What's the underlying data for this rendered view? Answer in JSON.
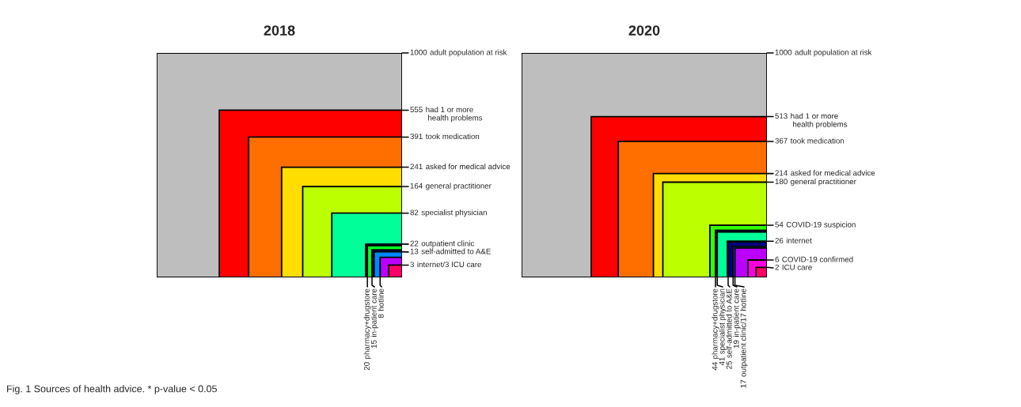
{
  "chart_data": [
    {
      "type": "other",
      "title": "2018",
      "categories": [
        "adult population at risk",
        "had 1 or more\n health problems",
        "took medication",
        "asked for medical advice",
        "general practitioner",
        "specialist physician",
        "outpatient clinic",
        "pharmacy+drugstore",
        "in-patient care",
        "self-admitted to A&E",
        "hotline",
        "internet/3 ICU care"
      ],
      "values": [
        1000,
        555,
        391,
        241,
        164,
        82,
        22,
        20,
        15,
        13,
        8,
        3
      ],
      "value_labels": [
        "1000",
        "555",
        "391",
        "241",
        "164",
        "82",
        "22",
        "20",
        "15",
        "13",
        "8",
        "3"
      ],
      "colors": [
        "#bebebe",
        "#ff0000",
        "#ff6f00",
        "#ffdd00",
        "#bbff00",
        "#00ff99",
        "#000080",
        "#00ff22",
        "#000080",
        "#0088ff",
        "#bb00ff",
        "#ff0066"
      ],
      "annotations": [
        "Fig. 1 Sources of health advice. * p-value < 0.05"
      ]
    },
    {
      "type": "other",
      "title": "2020",
      "categories": [
        "adult population at risk",
        "had 1 or more\n health problems",
        "took medication",
        "asked for medical advice",
        "general practitioner",
        "COVID-19 suspicion",
        "pharmacy+drugstore",
        "specialist physician",
        "internet",
        "self-admitted to A&E",
        "in-patient care",
        "outpatient clinic/17 hotline",
        "COVID-19 confirmed",
        "ICU care"
      ],
      "values": [
        1000,
        513,
        367,
        214,
        180,
        54,
        44,
        41,
        26,
        25,
        19,
        17,
        6,
        2
      ],
      "value_labels": [
        "1000",
        "513",
        "367",
        "214",
        "180",
        "54",
        "44",
        "41",
        "26",
        "25",
        "19",
        "17",
        "6",
        "2"
      ],
      "colors": [
        "#bebebe",
        "#ff0000",
        "#ff6f00",
        "#ffdd00",
        "#bbff00",
        "#33ff00",
        "#000080",
        "#00ff99",
        "#000080",
        "#000080",
        "#0088ff",
        "#bb00ff",
        "#ff00dd",
        "#ff0066"
      ]
    }
  ]
}
